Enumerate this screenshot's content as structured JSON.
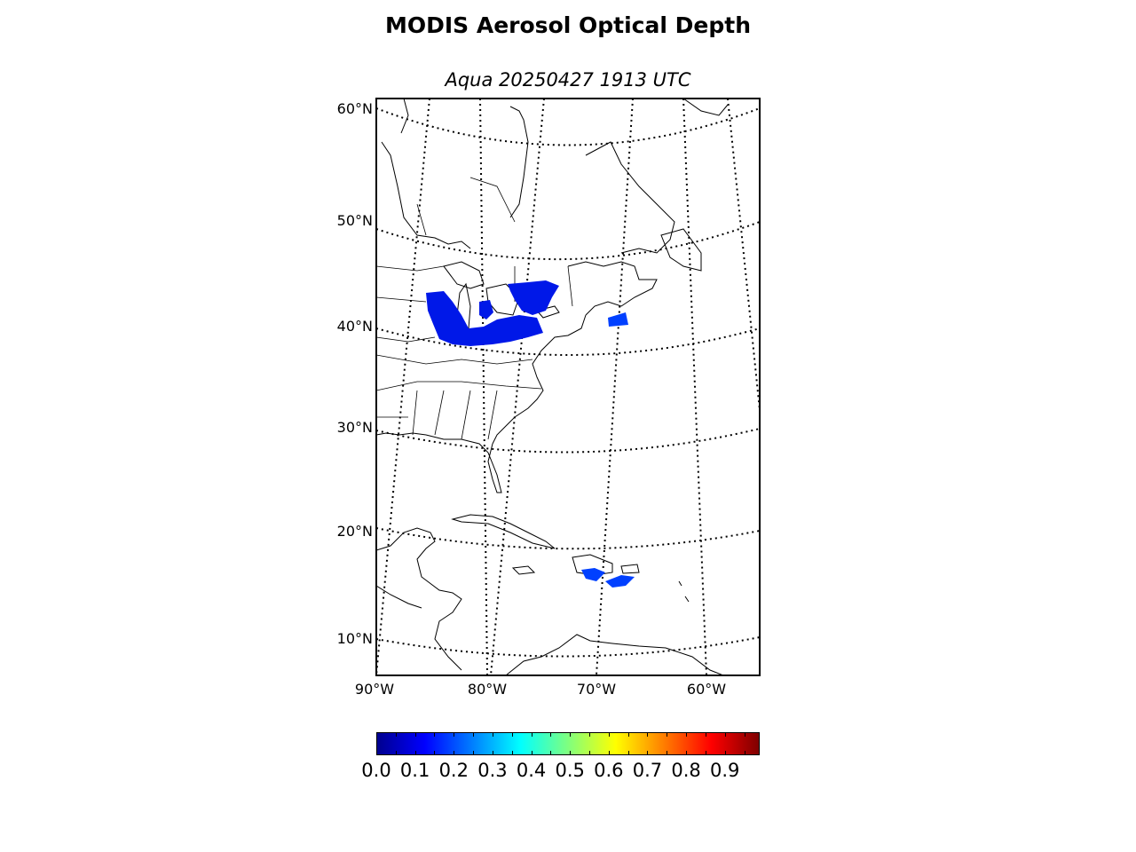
{
  "title": "MODIS Aerosol Optical Depth",
  "subtitle": "Aqua 20250427 1913 UTC",
  "map": {
    "projection": "conic",
    "latitude_labels": [
      "60°N",
      "50°N",
      "40°N",
      "30°N",
      "20°N",
      "10°N"
    ],
    "longitude_labels": [
      "90°W",
      "80°W",
      "70°W",
      "60°W"
    ],
    "graticule_style": "dotted",
    "aod_regions": [
      {
        "region": "Great Lakes / Ohio Valley",
        "aod_approx": 0.1,
        "color": "#0018e8"
      },
      {
        "region": "Southern Ontario / Quebec",
        "aod_approx": 0.1,
        "color": "#0018e8"
      },
      {
        "region": "Gulf of Maine offshore",
        "aod_approx": 0.15,
        "color": "#0040ff"
      },
      {
        "region": "Hispaniola / Puerto Rico",
        "aod_approx": 0.15,
        "color": "#0040ff"
      }
    ]
  },
  "colorbar": {
    "colormap": "jet",
    "labels": [
      "0.0",
      "0.1",
      "0.2",
      "0.3",
      "0.4",
      "0.5",
      "0.6",
      "0.7",
      "0.8",
      "0.9"
    ],
    "range": [
      0.0,
      0.99
    ],
    "colors": [
      "#00008f",
      "#0000ff",
      "#007fff",
      "#00ffff",
      "#7fff7f",
      "#ffff00",
      "#ff7f00",
      "#ff0000",
      "#7f0000"
    ]
  }
}
